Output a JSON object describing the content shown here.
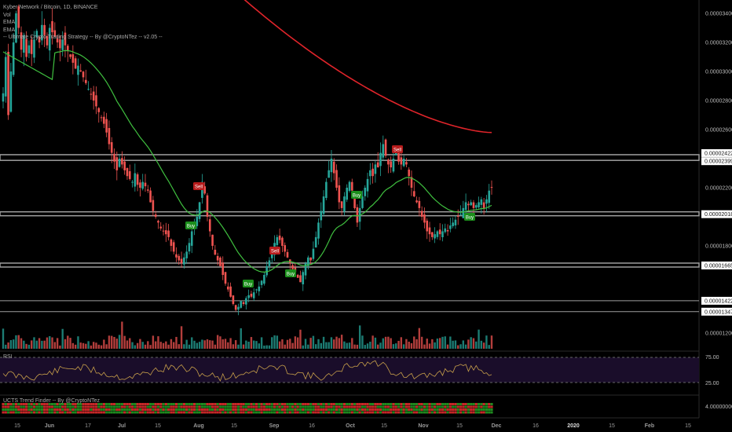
{
  "legend": {
    "symbol": "Kyber Network / Bitcoin, 1D, BINANCE",
    "vol": "Vol",
    "ema1": "EMA",
    "ema2": "EMA",
    "strategy": "-- Ultimate Crypto Trading Strategy -- By @CryptoNTez -- v2.05 --"
  },
  "rsi_panel": {
    "label": "RSI",
    "upper": "75.00",
    "lower": "25.00"
  },
  "trend_panel": {
    "label": "UCTS Trend Finder -- By @CryptoNTez",
    "value": "4.00000000"
  },
  "chart_data": {
    "type": "candlestick",
    "price_axis_ticks": [
      "0.00003400",
      "0.00003200",
      "0.00003000",
      "0.00002800",
      "0.00002600",
      "0.00002200",
      "0.00001800",
      "0.00001200"
    ],
    "levels": [
      {
        "price": 2.422e-05,
        "label": "0.00002422"
      },
      {
        "price": 2.399e-05,
        "label": "0.00002399"
      },
      {
        "price": 2.018e-05,
        "label": "0.00002018"
      },
      {
        "price": 1.665e-05,
        "label": "0.00001665"
      },
      {
        "price": 1.422e-05,
        "label": "0.00001422"
      },
      {
        "price": 1.347e-05,
        "label": "0.00001347"
      }
    ],
    "time_axis": [
      "15",
      "Jun",
      "17",
      "Jul",
      "15",
      "Aug",
      "15",
      "Sep",
      "16",
      "Oct",
      "15",
      "Nov",
      "15",
      "Dec",
      "16",
      "2020",
      "15",
      "Feb",
      "15"
    ],
    "signals": [
      {
        "type": "Sell",
        "date": "Aug 1"
      },
      {
        "type": "Buy",
        "date": "Aug 1"
      },
      {
        "type": "Buy",
        "date": "Aug 24"
      },
      {
        "type": "Sell",
        "date": "Sep 3"
      },
      {
        "type": "Buy",
        "date": "Sep 7"
      },
      {
        "type": "Buy",
        "date": "Oct 6"
      },
      {
        "type": "Sell",
        "date": "Oct 20"
      },
      {
        "type": "Buy",
        "date": "Nov 25"
      }
    ],
    "colors": {
      "up": "#26a69a",
      "down": "#ef5350",
      "ema_fast": "#3fbf3f",
      "ema_slow": "#e0242a",
      "rsi": "#c8a04a",
      "level_band": "#9e9e9e"
    }
  }
}
